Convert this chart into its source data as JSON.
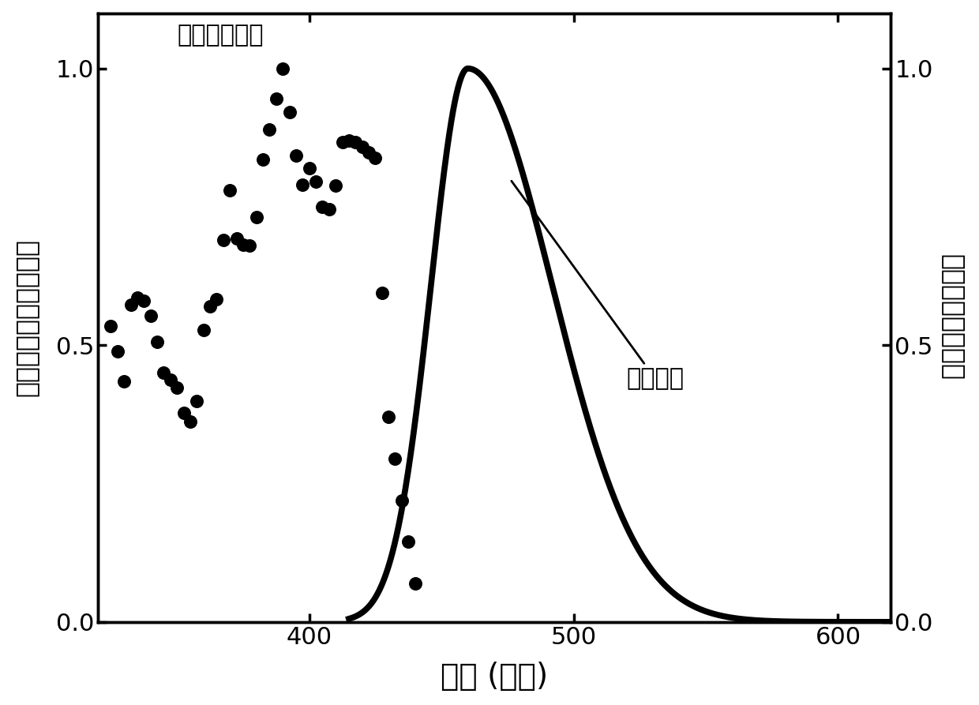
{
  "xlabel": "波长 (纳米)",
  "ylabel_left": "归一化的紫外可见吸收",
  "ylabel_right": "归一化的荧光发射",
  "annotation_abs": "紫外可见吸收",
  "annotation_em": "荧光发射",
  "xlim": [
    320,
    620
  ],
  "ylim": [
    0.0,
    1.1
  ],
  "background_color": "#ffffff",
  "line_color": "#000000",
  "dot_color": "#000000",
  "fontsize_label": 24,
  "fontsize_tick": 22,
  "fontsize_annot": 22
}
